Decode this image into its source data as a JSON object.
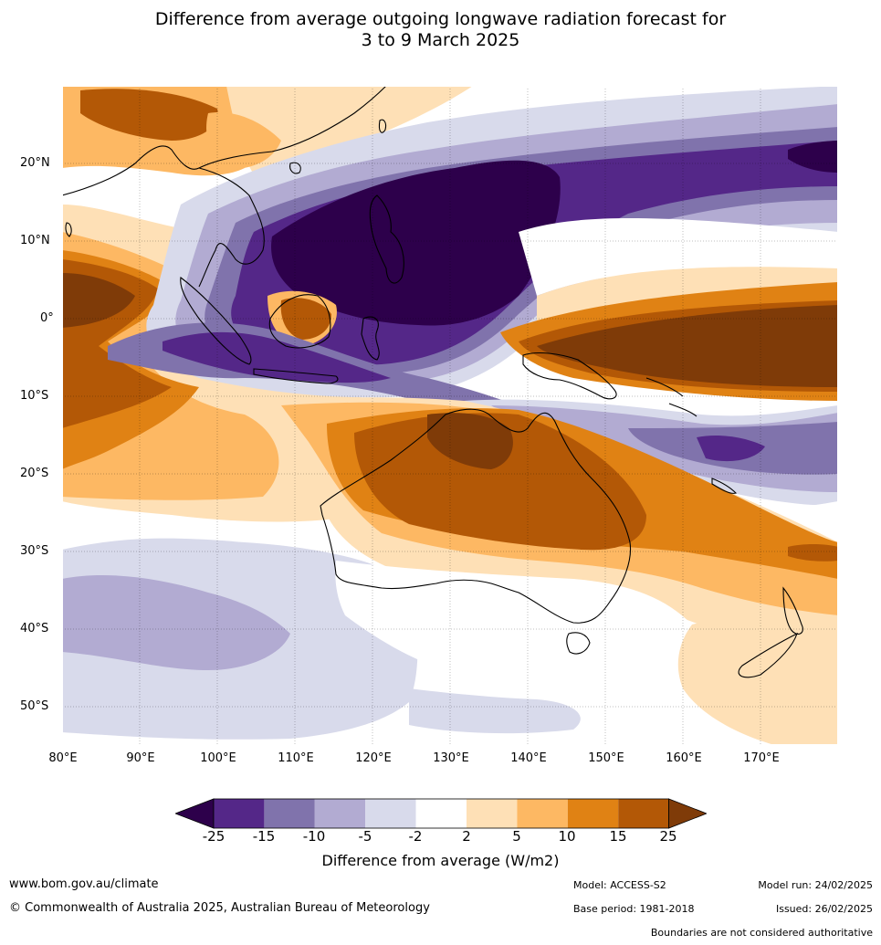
{
  "title_line1": "Difference from average outgoing longwave radiation forecast for",
  "title_line2": "3 to 9 March 2025",
  "lat_labels": [
    "20°N",
    "10°N",
    "0°",
    "10°S",
    "20°S",
    "30°S",
    "40°S",
    "50°S"
  ],
  "lon_labels": [
    "80°E",
    "90°E",
    "100°E",
    "110°E",
    "120°E",
    "130°E",
    "140°E",
    "150°E",
    "160°E",
    "170°E"
  ],
  "legend": {
    "ticks": [
      "-25",
      "-15",
      "-10",
      "-5",
      "-2",
      "2",
      "5",
      "10",
      "15",
      "25"
    ],
    "colors": [
      "#2d004b",
      "#542788",
      "#8073ac",
      "#b2abd2",
      "#d8daeb",
      "#ffffff",
      "#fee0b6",
      "#fdb863",
      "#e08214",
      "#b35806",
      "#7f3b08"
    ],
    "label": "Difference from average (W/m2)"
  },
  "footer": {
    "website": "www.bom.gov.au/climate",
    "copyright": "© Commonwealth of Australia 2025, Australian Bureau of Meteorology",
    "model": "Model: ACCESS-S2",
    "base_period": "Base period: 1981-2018",
    "model_run": "Model run: 24/02/2025",
    "issued": "Issued: 26/02/2025",
    "disclaimer": "Boundaries are not considered authoritative"
  }
}
